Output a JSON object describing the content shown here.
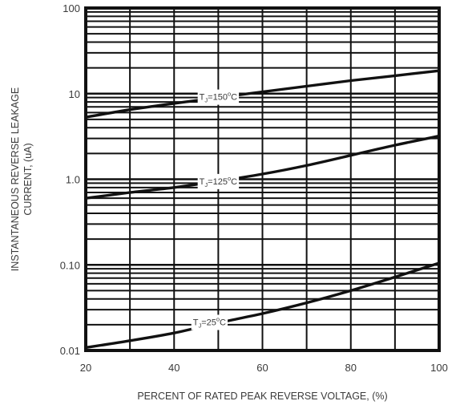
{
  "chart_data": {
    "type": "line",
    "xlabel": "PERCENT OF RATED PEAK REVERSE VOLTAGE, (%)",
    "ylabel_lines": [
      "INSTANTANEOUS REVERSE LEAKAGE",
      "CURRENT, (uA)"
    ],
    "xlim": [
      20,
      100
    ],
    "ylim": [
      0.01,
      100
    ],
    "y_scale": "log",
    "grid": true,
    "x_ticks": [
      {
        "value": 20,
        "label": "20"
      },
      {
        "value": 40,
        "label": "40"
      },
      {
        "value": 60,
        "label": "60"
      },
      {
        "value": 80,
        "label": "80"
      },
      {
        "value": 100,
        "label": "100"
      }
    ],
    "y_ticks": [
      {
        "value": 0.01,
        "label": "0.01"
      },
      {
        "value": 0.1,
        "label": "0.10"
      },
      {
        "value": 1,
        "label": "1.0"
      },
      {
        "value": 10,
        "label": "10"
      },
      {
        "value": 100,
        "label": "100"
      }
    ],
    "series": [
      {
        "label_main": "T",
        "label_sub": "J",
        "label_mid": "=150",
        "label_sup": "o",
        "label_end": "C",
        "label_at": [
          50,
          9.2
        ],
        "x": [
          20,
          30,
          40,
          50,
          60,
          70,
          80,
          90,
          100
        ],
        "y": [
          5.3,
          6.5,
          7.7,
          9.0,
          10.5,
          12.2,
          14.2,
          16.2,
          18.5
        ]
      },
      {
        "label_main": "T",
        "label_sub": "J",
        "label_mid": "=125",
        "label_sup": "o",
        "label_end": "C",
        "label_at": [
          50,
          0.95
        ],
        "x": [
          20,
          30,
          40,
          50,
          60,
          70,
          80,
          90,
          100
        ],
        "y": [
          0.6,
          0.7,
          0.8,
          0.95,
          1.15,
          1.45,
          1.9,
          2.5,
          3.2
        ]
      },
      {
        "label_main": "T",
        "label_sub": "J",
        "label_mid": "=25",
        "label_sup": "o",
        "label_end": "C",
        "label_at": [
          48,
          0.0215
        ],
        "x": [
          20,
          30,
          40,
          50,
          60,
          70,
          80,
          90,
          100
        ],
        "y": [
          0.0108,
          0.013,
          0.016,
          0.021,
          0.027,
          0.036,
          0.05,
          0.072,
          0.105
        ]
      }
    ]
  }
}
